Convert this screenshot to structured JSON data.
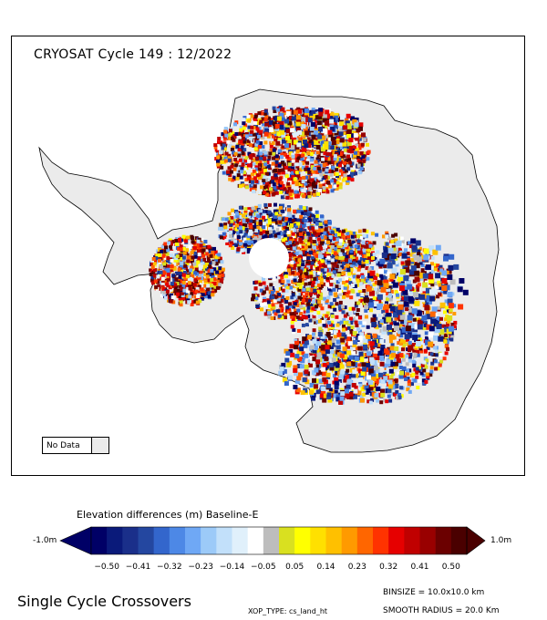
{
  "map": {
    "title": "CRYOSAT Cycle 149 : 12/2022",
    "no_data_label": "No Data",
    "land_color": "#ebebeb"
  },
  "colorbar": {
    "title": "Elevation differences (m) Baseline-E",
    "min_label": "-1.0m",
    "max_label": "1.0m",
    "ticks": [
      "-0.50",
      "-0.41",
      "-0.32",
      "-0.23",
      "-0.14",
      "-0.05",
      "0.05",
      "0.14",
      "0.23",
      "0.32",
      "0.41",
      "0.50"
    ],
    "colors": [
      "#000066",
      "#0a1a7a",
      "#1a2f8a",
      "#2447a0",
      "#3366cc",
      "#4d88e6",
      "#6fa8f5",
      "#9ccaf8",
      "#c2e0fa",
      "#e0f0fb",
      "#ffffff",
      "#bdbdbd",
      "#d9e020",
      "#ffff00",
      "#ffe000",
      "#ffc000",
      "#ff9a00",
      "#ff6600",
      "#ff3300",
      "#e60000",
      "#c00000",
      "#990000",
      "#6b0000",
      "#4a0000"
    ]
  },
  "footer": {
    "title": "Single Cycle Crossovers",
    "binsize": "BINSIZE = 10.0x10.0 km",
    "xop_type": "XOP_TYPE: cs_land_ht",
    "smooth_radius": "SMOOTH RADIUS =  20.0 Km"
  }
}
